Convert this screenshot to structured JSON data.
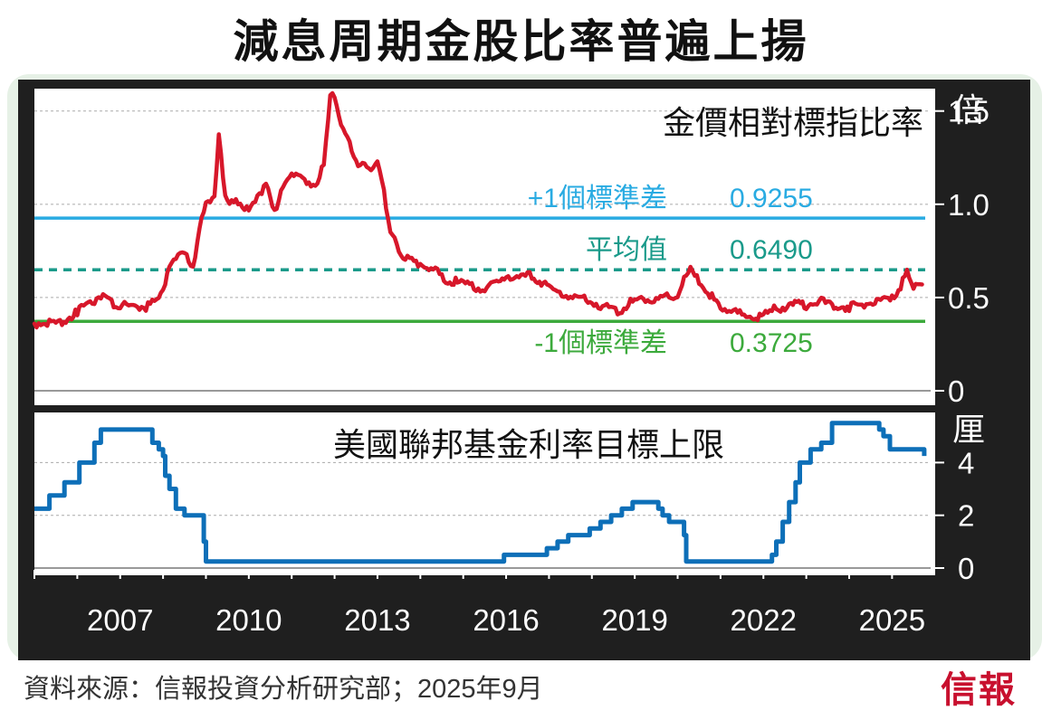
{
  "title": "減息周期金股比率普遍上揚",
  "footer": {
    "source": "資料來源：信報投資分析研究部；2025年9月",
    "logo": "信報"
  },
  "colors": {
    "ratio_line": "#d7172a",
    "fed_line": "#0d6fb8",
    "plus_sd": "#29abe2",
    "mean": "#1a9a8a",
    "minus_sd": "#3caa3c",
    "frame": "#1f1f1f"
  },
  "chart_data": [
    {
      "type": "line",
      "title": "金價相對標指比率",
      "yunit": "倍",
      "ylim": [
        0,
        1.62
      ],
      "yticks": [
        "0",
        "0.5",
        "1.0",
        "1.5"
      ],
      "reference_lines": [
        {
          "label": "+1個標準差",
          "value": 0.9255,
          "value_label": "0.9255",
          "style": "solid"
        },
        {
          "label": "平均值",
          "value": 0.649,
          "value_label": "0.6490",
          "style": "dashed"
        },
        {
          "label": "-1個標準差",
          "value": 0.3725,
          "value_label": "0.3725",
          "style": "solid"
        }
      ],
      "series": [
        {
          "x": [
            2005.0,
            2005.3,
            2005.6,
            2006.0,
            2006.3,
            2006.6,
            2006.8,
            2007.0,
            2007.3,
            2007.6,
            2007.8,
            2008.0,
            2008.2,
            2008.35,
            2008.5,
            2008.7,
            2008.8,
            2008.9,
            2009.0,
            2009.2,
            2009.3,
            2009.45,
            2009.6,
            2009.8,
            2010.0,
            2010.2,
            2010.4,
            2010.6,
            2010.8,
            2011.0,
            2011.2,
            2011.4,
            2011.6,
            2011.75,
            2011.9,
            2012.0,
            2012.2,
            2012.4,
            2012.6,
            2012.8,
            2013.0,
            2013.2,
            2013.3,
            2013.5,
            2013.7,
            2014.0,
            2014.3,
            2014.6,
            2015.0,
            2015.3,
            2015.6,
            2016.0,
            2016.3,
            2016.6,
            2017.0,
            2017.3,
            2017.6,
            2018.0,
            2018.3,
            2018.6,
            2018.9,
            2019.2,
            2019.5,
            2019.8,
            2020.0,
            2020.2,
            2020.3,
            2020.5,
            2020.8,
            2021.0,
            2021.3,
            2021.6,
            2022.0,
            2022.3,
            2022.6,
            2023.0,
            2023.3,
            2023.6,
            2024.0,
            2024.3,
            2024.6,
            2025.0,
            2025.2,
            2025.35,
            2025.5,
            2025.7
          ],
          "y": [
            0.36,
            0.37,
            0.36,
            0.42,
            0.47,
            0.52,
            0.47,
            0.45,
            0.46,
            0.45,
            0.48,
            0.56,
            0.68,
            0.75,
            0.72,
            0.68,
            0.78,
            0.95,
            1.0,
            1.05,
            1.37,
            1.05,
            1.0,
            1.02,
            0.95,
            1.05,
            1.1,
            0.97,
            1.08,
            1.18,
            1.15,
            1.12,
            1.1,
            1.22,
            1.58,
            1.58,
            1.4,
            1.3,
            1.2,
            1.2,
            1.22,
            1.0,
            0.85,
            0.75,
            0.7,
            0.68,
            0.65,
            0.6,
            0.57,
            0.55,
            0.55,
            0.62,
            0.6,
            0.62,
            0.55,
            0.52,
            0.5,
            0.48,
            0.45,
            0.42,
            0.47,
            0.5,
            0.48,
            0.52,
            0.5,
            0.62,
            0.65,
            0.58,
            0.5,
            0.45,
            0.42,
            0.4,
            0.4,
            0.44,
            0.46,
            0.46,
            0.48,
            0.46,
            0.45,
            0.46,
            0.48,
            0.5,
            0.56,
            0.64,
            0.56,
            0.57
          ]
        }
      ]
    },
    {
      "type": "line",
      "title": "美國聯邦基金利率目標上限",
      "yunit": "厘",
      "ylim": [
        0,
        5.9
      ],
      "yticks": [
        "0",
        "2",
        "4"
      ],
      "xticks": [
        "2007",
        "2010",
        "2013",
        "2016",
        "2019",
        "2022",
        "2025"
      ],
      "xlim": [
        2005.0,
        2025.9
      ],
      "series": [
        {
          "x": [
            2005.0,
            2005.35,
            2005.7,
            2006.05,
            2006.4,
            2006.55,
            2007.6,
            2007.75,
            2007.9,
            2008.0,
            2008.05,
            2008.15,
            2008.3,
            2008.5,
            2008.95,
            2009.0,
            2015.95,
            2016.95,
            2017.2,
            2017.45,
            2017.95,
            2018.2,
            2018.45,
            2018.7,
            2018.95,
            2019.55,
            2019.65,
            2019.8,
            2020.15,
            2020.2,
            2022.2,
            2022.3,
            2022.45,
            2022.6,
            2022.75,
            2022.85,
            2023.1,
            2023.35,
            2023.6,
            2024.7,
            2024.8,
            2024.95,
            2025.75
          ],
          "y": [
            2.25,
            2.75,
            3.25,
            4.0,
            4.75,
            5.25,
            5.25,
            4.75,
            4.5,
            4.25,
            3.5,
            3.0,
            2.25,
            2.0,
            1.0,
            0.25,
            0.5,
            0.75,
            1.0,
            1.25,
            1.5,
            1.75,
            2.0,
            2.25,
            2.5,
            2.25,
            2.0,
            1.75,
            1.25,
            0.25,
            0.5,
            1.0,
            1.75,
            2.5,
            3.25,
            4.0,
            4.5,
            4.75,
            5.5,
            5.25,
            5.0,
            4.5,
            4.25
          ]
        }
      ]
    }
  ]
}
